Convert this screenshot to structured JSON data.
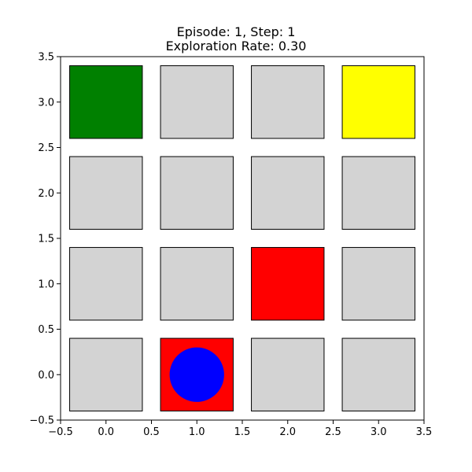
{
  "chart_data": {
    "type": "heatmap",
    "title_lines": [
      "Episode: 1, Step: 1",
      "Exploration Rate: 0.30"
    ],
    "xlim": [
      -0.5,
      3.5
    ],
    "ylim": [
      -0.5,
      3.5
    ],
    "xticks": [
      "−0.5",
      "0.0",
      "0.5",
      "1.0",
      "1.5",
      "2.0",
      "2.5",
      "3.0",
      "3.5"
    ],
    "yticks": [
      "−0.5",
      "0.0",
      "0.5",
      "1.0",
      "1.5",
      "2.0",
      "2.5",
      "3.0",
      "3.5"
    ],
    "xtick_values": [
      -0.5,
      0.0,
      0.5,
      1.0,
      1.5,
      2.0,
      2.5,
      3.0,
      3.5
    ],
    "ytick_values": [
      -0.5,
      0.0,
      0.5,
      1.0,
      1.5,
      2.0,
      2.5,
      3.0,
      3.5
    ],
    "grid": false,
    "cells": [
      {
        "x": 0,
        "y": 3,
        "color": "#008000",
        "role": "goal"
      },
      {
        "x": 1,
        "y": 3,
        "color": "#d3d3d3",
        "role": "empty"
      },
      {
        "x": 2,
        "y": 3,
        "color": "#d3d3d3",
        "role": "empty"
      },
      {
        "x": 3,
        "y": 3,
        "color": "#ffff00",
        "role": "special"
      },
      {
        "x": 0,
        "y": 2,
        "color": "#d3d3d3",
        "role": "empty"
      },
      {
        "x": 1,
        "y": 2,
        "color": "#d3d3d3",
        "role": "empty"
      },
      {
        "x": 2,
        "y": 2,
        "color": "#d3d3d3",
        "role": "empty"
      },
      {
        "x": 3,
        "y": 2,
        "color": "#d3d3d3",
        "role": "empty"
      },
      {
        "x": 0,
        "y": 1,
        "color": "#d3d3d3",
        "role": "empty"
      },
      {
        "x": 1,
        "y": 1,
        "color": "#d3d3d3",
        "role": "empty"
      },
      {
        "x": 2,
        "y": 1,
        "color": "#ff0000",
        "role": "hazard"
      },
      {
        "x": 3,
        "y": 1,
        "color": "#d3d3d3",
        "role": "empty"
      },
      {
        "x": 0,
        "y": 0,
        "color": "#d3d3d3",
        "role": "empty"
      },
      {
        "x": 1,
        "y": 0,
        "color": "#ff0000",
        "role": "hazard"
      },
      {
        "x": 2,
        "y": 0,
        "color": "#d3d3d3",
        "role": "empty"
      },
      {
        "x": 3,
        "y": 0,
        "color": "#d3d3d3",
        "role": "empty"
      }
    ],
    "agent": {
      "x": 1,
      "y": 0,
      "color": "#0000ff"
    }
  }
}
